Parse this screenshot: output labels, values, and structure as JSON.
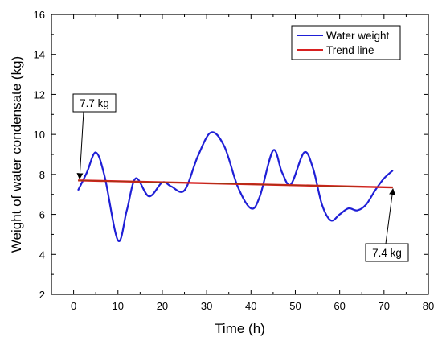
{
  "chart_data": {
    "type": "line",
    "xlabel": "Time (h)",
    "ylabel": "Weight of water condensate (kg)",
    "xlim": [
      -5,
      80
    ],
    "ylim": [
      2,
      16
    ],
    "x_ticks": [
      0,
      10,
      20,
      30,
      40,
      50,
      60,
      70,
      80
    ],
    "x_tick_labels": [
      "0",
      "10",
      "20",
      "30",
      "40",
      "50",
      "60",
      "70",
      "80"
    ],
    "y_ticks": [
      2,
      4,
      6,
      8,
      10,
      12,
      14,
      16
    ],
    "y_tick_labels": [
      "2",
      "4",
      "6",
      "8",
      "10",
      "12",
      "14",
      "16"
    ],
    "grid": false,
    "legend_position": "top-right",
    "series": [
      {
        "name": "Water weight",
        "color": "#1f1fd6",
        "x": [
          1,
          3,
          5,
          7,
          10,
          12,
          14,
          17,
          20,
          22,
          25,
          28,
          31,
          34,
          37,
          40,
          42,
          45,
          47,
          49,
          52,
          54,
          56,
          58,
          60,
          62,
          64,
          66,
          68,
          70,
          72
        ],
        "y": [
          7.2,
          8.1,
          9.1,
          7.9,
          4.7,
          6.2,
          7.8,
          6.9,
          7.6,
          7.4,
          7.2,
          8.9,
          10.1,
          9.4,
          7.4,
          6.3,
          6.9,
          9.2,
          8.1,
          7.5,
          9.1,
          8.3,
          6.5,
          5.7,
          6.0,
          6.3,
          6.2,
          6.5,
          7.2,
          7.8,
          8.2
        ]
      },
      {
        "name": "Trend line",
        "color": "#d82020",
        "x": [
          1,
          72
        ],
        "y": [
          7.7,
          7.35
        ]
      }
    ],
    "annotations": [
      {
        "text": "7.7 kg",
        "target_x": 1,
        "target_y": 7.7
      },
      {
        "text": "7.4 kg",
        "target_x": 72,
        "target_y": 7.35
      }
    ]
  }
}
